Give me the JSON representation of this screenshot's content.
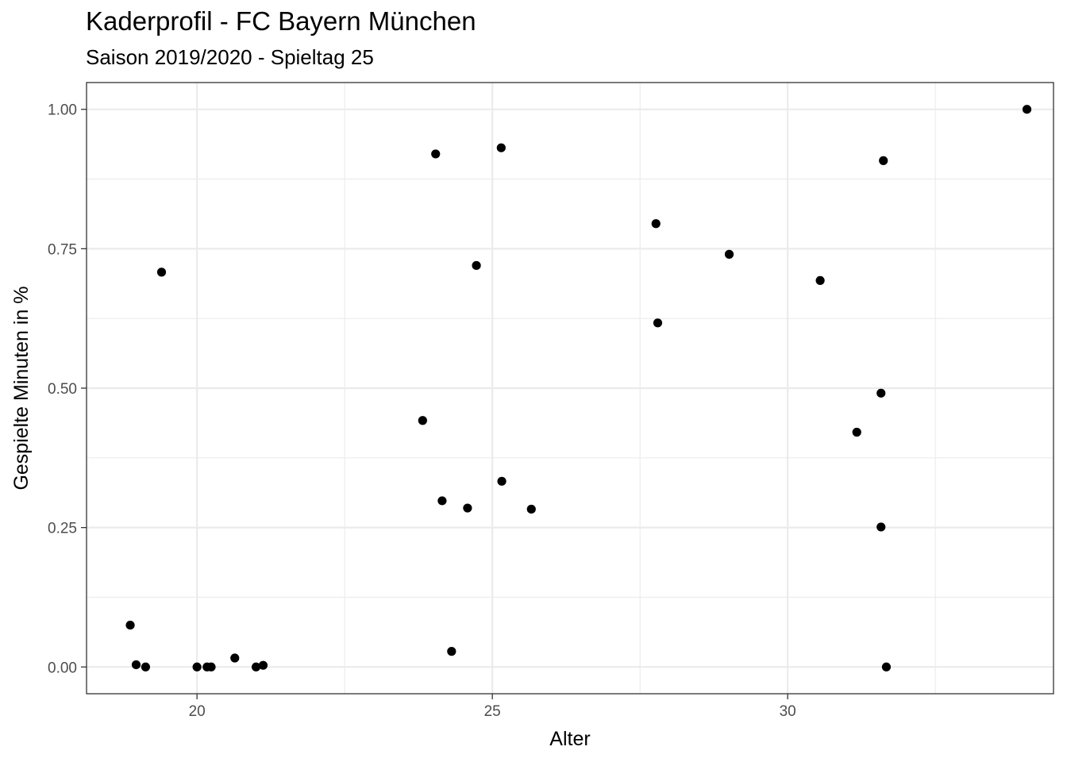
{
  "chart_data": {
    "type": "scatter",
    "title": "Kaderprofil - FC Bayern München",
    "subtitle": "Saison 2019/2020 - Spieltag 25",
    "xlabel": "Alter",
    "ylabel": "Gespielte Minuten in %",
    "xlim": [
      18.13,
      34.5
    ],
    "ylim": [
      -0.048,
      1.048
    ],
    "x_ticks": [
      20,
      25,
      30
    ],
    "x_tick_labels": [
      "20",
      "25",
      "30"
    ],
    "y_ticks": [
      0,
      0.25,
      0.5,
      0.75,
      1.0
    ],
    "y_tick_labels": [
      "0.00",
      "0.25",
      "0.50",
      "0.75",
      "1.00"
    ],
    "grid": true,
    "point_color": "#000000",
    "grid_color": "#ebebeb",
    "points": [
      {
        "x": 18.87,
        "y": 0.075
      },
      {
        "x": 18.97,
        "y": 0.004
      },
      {
        "x": 19.13,
        "y": 0.0
      },
      {
        "x": 19.4,
        "y": 0.708
      },
      {
        "x": 20.0,
        "y": 0.0
      },
      {
        "x": 20.17,
        "y": 0.0
      },
      {
        "x": 20.24,
        "y": 0.0
      },
      {
        "x": 20.64,
        "y": 0.016
      },
      {
        "x": 21.0,
        "y": 0.0
      },
      {
        "x": 21.12,
        "y": 0.003
      },
      {
        "x": 23.82,
        "y": 0.442
      },
      {
        "x": 24.04,
        "y": 0.92
      },
      {
        "x": 24.15,
        "y": 0.298
      },
      {
        "x": 24.31,
        "y": 0.028
      },
      {
        "x": 24.58,
        "y": 0.285
      },
      {
        "x": 24.73,
        "y": 0.72
      },
      {
        "x": 25.15,
        "y": 0.931
      },
      {
        "x": 25.16,
        "y": 0.333
      },
      {
        "x": 25.66,
        "y": 0.283
      },
      {
        "x": 27.77,
        "y": 0.795
      },
      {
        "x": 27.8,
        "y": 0.617
      },
      {
        "x": 29.01,
        "y": 0.74
      },
      {
        "x": 30.55,
        "y": 0.693
      },
      {
        "x": 31.17,
        "y": 0.421
      },
      {
        "x": 31.58,
        "y": 0.491
      },
      {
        "x": 31.58,
        "y": 0.251
      },
      {
        "x": 31.62,
        "y": 0.908
      },
      {
        "x": 31.67,
        "y": 0.0
      },
      {
        "x": 34.05,
        "y": 1.0
      }
    ]
  }
}
